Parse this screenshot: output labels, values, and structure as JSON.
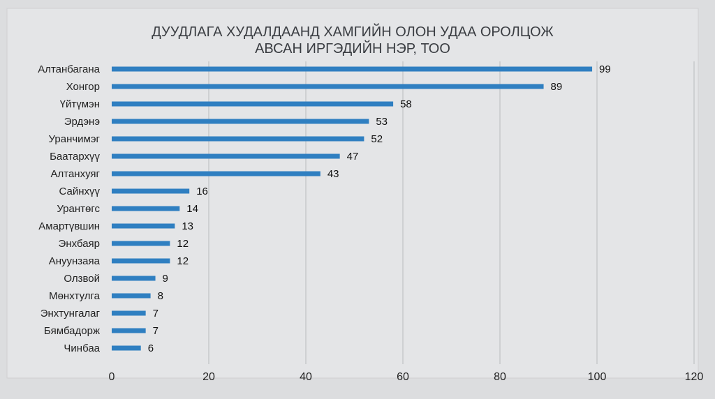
{
  "chart_data": {
    "type": "bar",
    "orientation": "horizontal",
    "title_lines": [
      "ДУУДЛАГА ХУДАЛДААНД ХАМГИЙН ОЛОН УДАА ОРОЛЦОЖ",
      "АВСАН ИРГЭДИЙН НЭР, ТОО"
    ],
    "categories": [
      "Алтанбагана",
      "Хонгор",
      "Үйтүмэн",
      "Эрдэнэ",
      "Уранчимэг",
      "Баатархүү",
      "Алтанхуяг",
      "Сайнхүү",
      "Урантөгс",
      "Амартүвшин",
      "Энхбаяр",
      "Ануунзаяа",
      "Олзвой",
      "Мөнхтулга",
      "Энхтунгалаг",
      "Бямбадорж",
      "Чинбаа"
    ],
    "values": [
      99,
      89,
      58,
      53,
      52,
      47,
      43,
      16,
      14,
      13,
      12,
      12,
      9,
      8,
      7,
      7,
      6
    ],
    "xlim": [
      0,
      120
    ],
    "xticks": [
      0,
      20,
      40,
      60,
      80,
      100,
      120
    ],
    "grid": true,
    "bar_color": "#2f7fc1",
    "xlabel": "",
    "ylabel": ""
  }
}
